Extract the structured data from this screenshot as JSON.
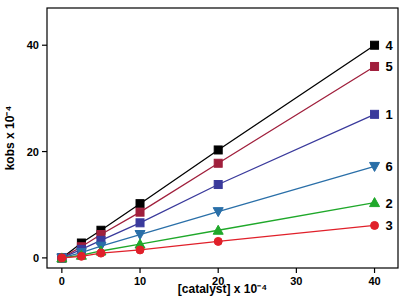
{
  "chart_data": {
    "type": "line",
    "x_label": "[catalyst] x 10⁻⁴",
    "y_label": "kobs x 10⁻⁴",
    "x": [
      0,
      2.5,
      5,
      10,
      20,
      40
    ],
    "xlim": [
      -1.9,
      43
    ],
    "ylim": [
      -1.9,
      47
    ],
    "xticks": [
      0,
      10,
      20,
      30,
      40
    ],
    "yticks": [
      0,
      20,
      40
    ],
    "series": [
      {
        "name": "4",
        "color": "#000000",
        "marker": "square",
        "values": [
          0,
          2.8,
          5.2,
          10.2,
          20.3,
          40
        ]
      },
      {
        "name": "5",
        "color": "#a01f3c",
        "marker": "square",
        "values": [
          0,
          2.1,
          4.4,
          8.6,
          17.8,
          36
        ]
      },
      {
        "name": "1",
        "color": "#3a3a9c",
        "marker": "square",
        "values": [
          0,
          1.6,
          3.3,
          6.6,
          13.8,
          27
        ]
      },
      {
        "name": "6",
        "color": "#2a6fa8",
        "marker": "triangle-down",
        "values": [
          0,
          1.0,
          2.2,
          4.4,
          8.7,
          17.2
        ]
      },
      {
        "name": "2",
        "color": "#1fa82a",
        "marker": "triangle",
        "values": [
          0,
          0.5,
          1.3,
          2.6,
          5.2,
          10.4
        ]
      },
      {
        "name": "3",
        "color": "#e0202a",
        "marker": "circle",
        "values": [
          0,
          0.3,
          0.9,
          1.5,
          3.1,
          6.1
        ]
      }
    ]
  }
}
